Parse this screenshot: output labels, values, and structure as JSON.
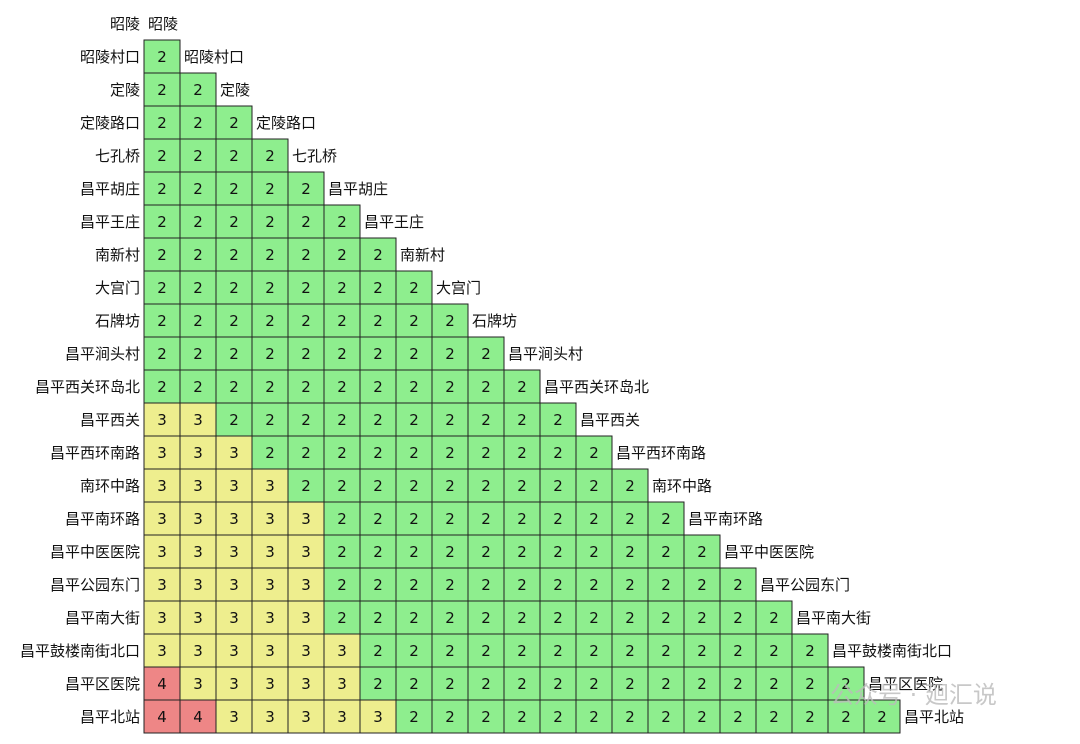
{
  "stations": [
    "昭陵",
    "昭陵村口",
    "定陵",
    "定陵路口",
    "七孔桥",
    "昌平胡庄",
    "昌平王庄",
    "南新村",
    "大宫门",
    "石牌坊",
    "昌平涧头村",
    "昌平西关环岛北",
    "昌平西关",
    "昌平西环南路",
    "南环中路",
    "昌平南环路",
    "昌平中医医院",
    "昌平公园东门",
    "昌平南大街",
    "昌平鼓楼南街北口",
    "昌平区医院",
    "昌平北站"
  ],
  "fares": [
    [
      2
    ],
    [
      2,
      2
    ],
    [
      2,
      2,
      2
    ],
    [
      2,
      2,
      2,
      2
    ],
    [
      2,
      2,
      2,
      2,
      2
    ],
    [
      2,
      2,
      2,
      2,
      2,
      2
    ],
    [
      2,
      2,
      2,
      2,
      2,
      2,
      2
    ],
    [
      2,
      2,
      2,
      2,
      2,
      2,
      2,
      2
    ],
    [
      2,
      2,
      2,
      2,
      2,
      2,
      2,
      2,
      2
    ],
    [
      2,
      2,
      2,
      2,
      2,
      2,
      2,
      2,
      2,
      2
    ],
    [
      2,
      2,
      2,
      2,
      2,
      2,
      2,
      2,
      2,
      2,
      2
    ],
    [
      3,
      3,
      2,
      2,
      2,
      2,
      2,
      2,
      2,
      2,
      2,
      2
    ],
    [
      3,
      3,
      3,
      2,
      2,
      2,
      2,
      2,
      2,
      2,
      2,
      2,
      2
    ],
    [
      3,
      3,
      3,
      3,
      2,
      2,
      2,
      2,
      2,
      2,
      2,
      2,
      2,
      2
    ],
    [
      3,
      3,
      3,
      3,
      3,
      2,
      2,
      2,
      2,
      2,
      2,
      2,
      2,
      2,
      2
    ],
    [
      3,
      3,
      3,
      3,
      3,
      2,
      2,
      2,
      2,
      2,
      2,
      2,
      2,
      2,
      2,
      2
    ],
    [
      3,
      3,
      3,
      3,
      3,
      2,
      2,
      2,
      2,
      2,
      2,
      2,
      2,
      2,
      2,
      2,
      2
    ],
    [
      3,
      3,
      3,
      3,
      3,
      2,
      2,
      2,
      2,
      2,
      2,
      2,
      2,
      2,
      2,
      2,
      2,
      2
    ],
    [
      3,
      3,
      3,
      3,
      3,
      3,
      2,
      2,
      2,
      2,
      2,
      2,
      2,
      2,
      2,
      2,
      2,
      2,
      2
    ],
    [
      4,
      3,
      3,
      3,
      3,
      3,
      2,
      2,
      2,
      2,
      2,
      2,
      2,
      2,
      2,
      2,
      2,
      2,
      2,
      2
    ],
    [
      4,
      4,
      3,
      3,
      3,
      3,
      3,
      2,
      2,
      2,
      2,
      2,
      2,
      2,
      2,
      2,
      2,
      2,
      2,
      2,
      2
    ]
  ],
  "fare_colors": {
    "2": "#8eee8e",
    "3": "#eeee8e",
    "4": "#ee8686"
  },
  "watermark": "公众号 · 廻汇说"
}
